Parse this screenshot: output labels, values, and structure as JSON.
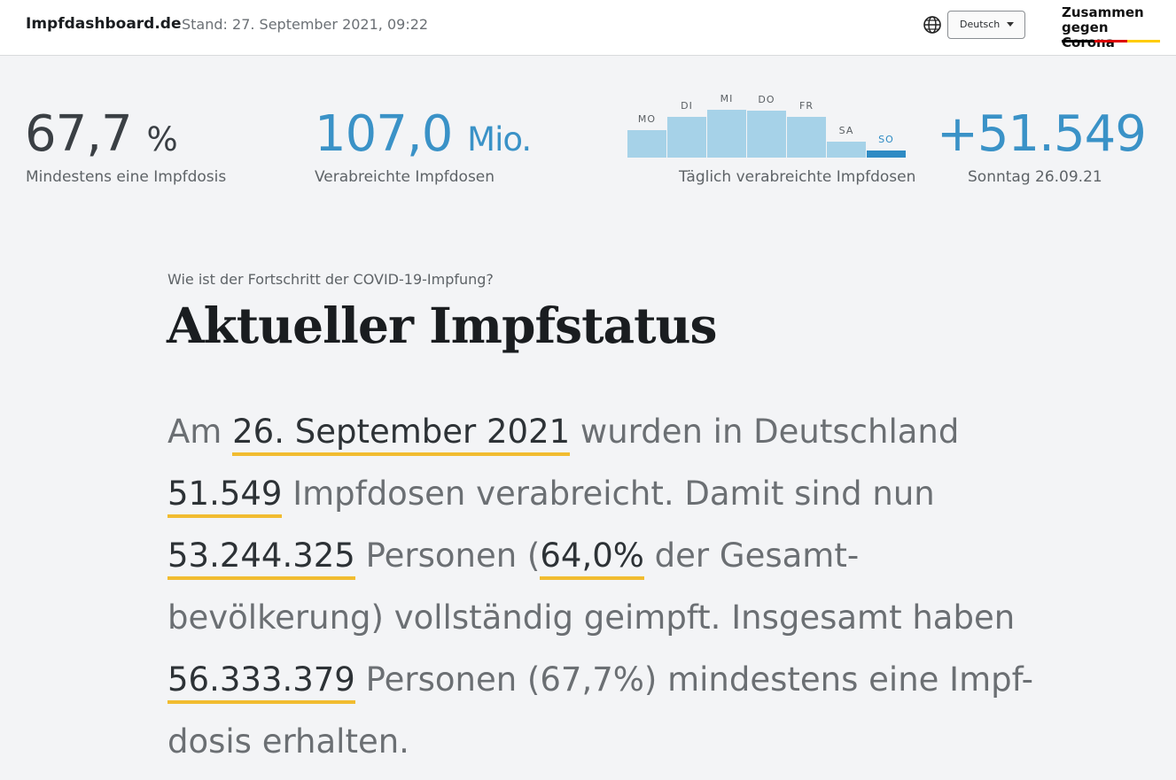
{
  "header": {
    "brand": "Impfdashboard.de",
    "stand": "Stand: 27. September 2021, 09:22",
    "language": "Deutsch",
    "logo_line1": "Zusammen",
    "logo_line2": "gegen Corona",
    "logo_colors": [
      "#000000",
      "#dd0000",
      "#ffcc00"
    ]
  },
  "stats": {
    "first_dose": {
      "value": "67,7",
      "unit": "%",
      "label": "Mindestens eine Impfdosis"
    },
    "total_doses": {
      "value": "107,0",
      "unit": "Mio.",
      "label": "Verabreichte Impfdosen"
    },
    "daily": {
      "value": "+51.549",
      "label": "Sonntag 26.09.21"
    }
  },
  "chart_data": {
    "type": "bar",
    "categories": [
      "MO",
      "DI",
      "MI",
      "DO",
      "FR",
      "SA",
      "SO"
    ],
    "values": [
      0.57,
      0.86,
      1.0,
      0.98,
      0.86,
      0.33,
      0.18
    ],
    "highlight": "SO",
    "xlabel": "Täglich verabreichte Impfdosen",
    "colors": {
      "bar": "#a6d2e8",
      "active": "#2e8bc4"
    }
  },
  "section": {
    "kicker": "Wie ist der Fortschritt der COVID-19-Impfung?",
    "title": "Aktueller Impfstatus"
  },
  "paragraph": {
    "t1": "Am ",
    "date": "26. September 2021",
    "t2": " wurden in Deutschland",
    "doses": "51.549",
    "t3": " Impfdosen verabreicht. Damit sind nun",
    "fully": "53.244.325",
    "t4": " Personen (",
    "fully_pct": "64,0%",
    "t5": " der Gesamt-",
    "t6": "bevölkerung) vollständig geimpft. Insgesamt haben",
    "first": "56.333.379",
    "t7": " Personen (67,7%) mindestens eine Impf-",
    "t8": "dosis erhalten."
  },
  "colors": {
    "accent_blue": "#3a92c7",
    "underline_yellow": "#f1bc30"
  }
}
